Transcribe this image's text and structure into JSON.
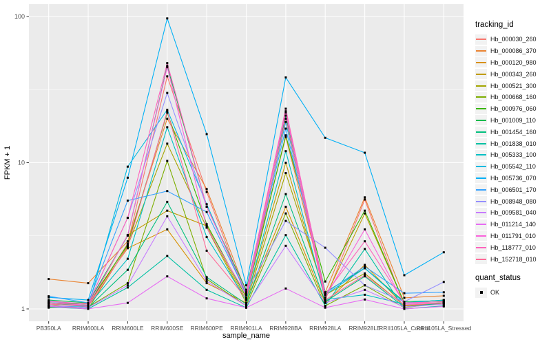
{
  "chart_data": {
    "type": "line",
    "title": "",
    "xlabel": "sample_name",
    "ylabel": "FPKM + 1",
    "y_scale": "log10",
    "y_ticks": [
      "1",
      "10",
      "100"
    ],
    "y_tick_values": [
      1,
      10,
      100
    ],
    "y_minor_values": [
      3.1623,
      31.623
    ],
    "ylim": [
      0.82,
      120
    ],
    "grid": "on",
    "legend_position": "right",
    "panel_bg": "#EBEBEB",
    "grid_color": "#FFFFFF",
    "tick_color": "#333333",
    "axis_text_color": "#4D4D4D",
    "point_color": "#000000",
    "legend_title": "tracking_id",
    "legend2_title": "quant_status",
    "quant_status_label": "OK",
    "categories": [
      "PB350LA",
      "RRIM600LA",
      "RRIM600LE",
      "RRIM600SE",
      "RRIM600PE",
      "RRIM901LA",
      "RRIM928BA",
      "RRIM928LA",
      "RRIM928LE",
      "RRII105LA_Control",
      "RRII105LA_Stressed"
    ],
    "series": [
      {
        "name": "Hb_000030_260",
        "color": "#F8766D",
        "values": [
          1.1,
          1.05,
          2.8,
          39.0,
          6.3,
          1.2,
          22.5,
          1.15,
          5.6,
          1.05,
          1.1
        ]
      },
      {
        "name": "Hb_000086_370",
        "color": "#EA8331",
        "values": [
          1.6,
          1.5,
          2.9,
          20.0,
          6.6,
          1.3,
          15.0,
          1.3,
          5.8,
          1.19,
          1.23
        ]
      },
      {
        "name": "Hb_000120_980",
        "color": "#D89000",
        "values": [
          1.05,
          1.1,
          2.6,
          3.5,
          1.5,
          1.1,
          5.0,
          1.1,
          2.0,
          1.05,
          1.1
        ]
      },
      {
        "name": "Hb_000343_260",
        "color": "#C09B00",
        "values": [
          1.1,
          1.05,
          3.2,
          4.7,
          3.7,
          1.15,
          10.0,
          1.2,
          4.5,
          1.1,
          1.12
        ]
      },
      {
        "name": "Hb_000521_300",
        "color": "#A3A500",
        "values": [
          1.05,
          1.0,
          2.7,
          13.5,
          3.6,
          1.1,
          8.5,
          1.25,
          1.75,
          1.05,
          1.08
        ]
      },
      {
        "name": "Hb_000668_160",
        "color": "#7CAE00",
        "values": [
          1.02,
          1.03,
          1.5,
          10.3,
          1.6,
          1.05,
          4.5,
          1.05,
          1.45,
          1.02,
          1.1
        ]
      },
      {
        "name": "Hb_000976_060",
        "color": "#39B600",
        "values": [
          1.1,
          1.08,
          2.75,
          22.0,
          3.8,
          1.2,
          15.4,
          1.54,
          4.7,
          1.1,
          1.15
        ]
      },
      {
        "name": "Hb_001009_110",
        "color": "#00BB4E",
        "values": [
          1.15,
          1.1,
          3.17,
          46.0,
          5.0,
          1.35,
          21.0,
          1.3,
          1.9,
          1.12,
          1.14
        ]
      },
      {
        "name": "Hb_001454_160",
        "color": "#00BF7D",
        "values": [
          1.05,
          1.02,
          1.85,
          5.4,
          1.65,
          1.08,
          6.1,
          1.12,
          1.67,
          1.03,
          1.1
        ]
      },
      {
        "name": "Hb_001838_010",
        "color": "#00C1A3",
        "values": [
          1.03,
          1.0,
          1.4,
          2.3,
          1.35,
          1.02,
          3.2,
          1.05,
          2.57,
          1.0,
          1.05
        ]
      },
      {
        "name": "Hb_005333_100",
        "color": "#00BFC4",
        "values": [
          1.08,
          1.05,
          2.2,
          17.5,
          3.1,
          1.15,
          12.0,
          1.16,
          1.25,
          1.08,
          1.1
        ]
      },
      {
        "name": "Hb_005542_110",
        "color": "#00BAE0",
        "values": [
          1.05,
          1.03,
          9.4,
          23.0,
          5.2,
          1.25,
          19.0,
          1.25,
          1.9,
          1.1,
          1.15
        ]
      },
      {
        "name": "Hb_005736_070",
        "color": "#00B0F6",
        "values": [
          1.2,
          1.15,
          7.9,
          97.0,
          15.7,
          1.45,
          38.3,
          14.8,
          11.7,
          1.7,
          2.44
        ]
      },
      {
        "name": "Hb_006501_170",
        "color": "#35A2FF",
        "values": [
          1.22,
          1.1,
          5.5,
          6.4,
          4.6,
          1.28,
          17.1,
          1.28,
          1.95,
          1.28,
          1.3
        ]
      },
      {
        "name": "Hb_008948_080",
        "color": "#9590FF",
        "values": [
          1.12,
          1.08,
          4.2,
          30.0,
          5.0,
          1.3,
          4.0,
          2.62,
          1.45,
          1.12,
          1.53
        ]
      },
      {
        "name": "Hb_009581_040",
        "color": "#C77CFF",
        "values": [
          1.05,
          1.02,
          1.45,
          4.3,
          1.55,
          1.05,
          2.7,
          1.1,
          1.35,
          1.03,
          1.08
        ]
      },
      {
        "name": "Hb_011214_140",
        "color": "#E76BF3",
        "values": [
          1.04,
          1.0,
          1.1,
          1.67,
          1.18,
          1.02,
          1.38,
          1.02,
          1.16,
          1.0,
          1.04
        ]
      },
      {
        "name": "Hb_011791_010",
        "color": "#FA62DB",
        "values": [
          1.1,
          1.06,
          3.2,
          45.0,
          3.6,
          1.25,
          22.0,
          1.2,
          3.5,
          1.08,
          1.1
        ]
      },
      {
        "name": "Hb_118777_010",
        "color": "#FF62BC",
        "values": [
          1.13,
          1.08,
          4.2,
          48.0,
          5.0,
          1.3,
          23.4,
          1.26,
          2.9,
          1.1,
          1.12
        ]
      },
      {
        "name": "Hb_152718_010",
        "color": "#FF6A98",
        "values": [
          1.08,
          1.04,
          2.65,
          22.5,
          2.5,
          1.18,
          20.0,
          1.15,
          1.7,
          1.06,
          1.1
        ]
      }
    ]
  }
}
